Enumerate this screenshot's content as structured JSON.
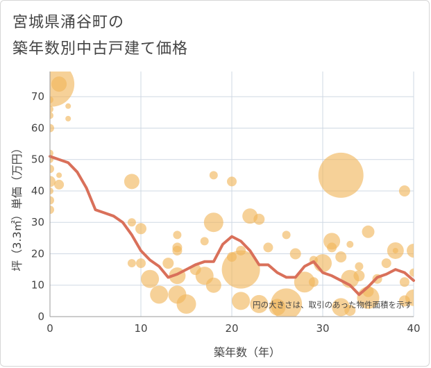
{
  "chart_data": {
    "type": "scatter",
    "title_line1": "宮城県涌谷町の",
    "title_line2": "築年数別中古戸建て価格",
    "xlabel": "築年数（年）",
    "ylabel": "坪（3.3㎡）単価（万円）",
    "xlim": [
      0,
      40
    ],
    "ylim": [
      0,
      78
    ],
    "x_ticks": [
      0,
      10,
      20,
      30,
      40
    ],
    "y_ticks": [
      0,
      10,
      20,
      30,
      40,
      50,
      60,
      70
    ],
    "note": "円の大きさは、取引のあった物件面積を示す",
    "colors": {
      "bubble": "#f0b559",
      "line": "#d9705a",
      "grid": "#cfd8e3"
    },
    "bubbles": [
      {
        "x": 0.2,
        "y": 74,
        "s": 6.5
      },
      {
        "x": 1,
        "y": 74,
        "s": 2.2
      },
      {
        "x": 0,
        "y": 69,
        "s": 1
      },
      {
        "x": 2,
        "y": 67,
        "s": 0.8
      },
      {
        "x": 0,
        "y": 66,
        "s": 1
      },
      {
        "x": 0,
        "y": 64,
        "s": 1
      },
      {
        "x": 2,
        "y": 63,
        "s": 0.8
      },
      {
        "x": 0,
        "y": 60,
        "s": 1.2
      },
      {
        "x": 0,
        "y": 52,
        "s": 1
      },
      {
        "x": 0,
        "y": 50,
        "s": 1
      },
      {
        "x": 0,
        "y": 47,
        "s": 1.2
      },
      {
        "x": 1,
        "y": 45,
        "s": 0.8
      },
      {
        "x": 0,
        "y": 43,
        "s": 1.6
      },
      {
        "x": 1,
        "y": 42,
        "s": 1.4
      },
      {
        "x": 0,
        "y": 40,
        "s": 1
      },
      {
        "x": 0,
        "y": 37,
        "s": 1.2
      },
      {
        "x": 0,
        "y": 34,
        "s": 1.2
      },
      {
        "x": 9,
        "y": 43,
        "s": 2.2
      },
      {
        "x": 9,
        "y": 30,
        "s": 1.2
      },
      {
        "x": 10,
        "y": 28,
        "s": 1.6
      },
      {
        "x": 9,
        "y": 17,
        "s": 1.2
      },
      {
        "x": 10,
        "y": 17,
        "s": 1.4
      },
      {
        "x": 11,
        "y": 12,
        "s": 2.6
      },
      {
        "x": 12,
        "y": 7,
        "s": 2.6
      },
      {
        "x": 13,
        "y": 17,
        "s": 1.6
      },
      {
        "x": 14,
        "y": 26,
        "s": 1.2
      },
      {
        "x": 14,
        "y": 22,
        "s": 1.4
      },
      {
        "x": 14,
        "y": 21,
        "s": 1.4
      },
      {
        "x": 14,
        "y": 13,
        "s": 2.4
      },
      {
        "x": 14,
        "y": 7,
        "s": 2.6
      },
      {
        "x": 15,
        "y": 4,
        "s": 2.8
      },
      {
        "x": 16,
        "y": 15,
        "s": 1.6
      },
      {
        "x": 17,
        "y": 24,
        "s": 1.2
      },
      {
        "x": 17,
        "y": 13,
        "s": 2.6
      },
      {
        "x": 18,
        "y": 45,
        "s": 1.2
      },
      {
        "x": 18,
        "y": 30,
        "s": 2.8
      },
      {
        "x": 18,
        "y": 10,
        "s": 2.2
      },
      {
        "x": 20,
        "y": 43,
        "s": 1.4
      },
      {
        "x": 20,
        "y": 19,
        "s": 1.4
      },
      {
        "x": 21,
        "y": 21,
        "s": 1.4
      },
      {
        "x": 21,
        "y": 15,
        "s": 5.5
      },
      {
        "x": 21,
        "y": 5,
        "s": 2.6
      },
      {
        "x": 22,
        "y": 32,
        "s": 2.2
      },
      {
        "x": 23,
        "y": 31,
        "s": 1.6
      },
      {
        "x": 23,
        "y": 4,
        "s": 2.6
      },
      {
        "x": 24,
        "y": 22,
        "s": 1.4
      },
      {
        "x": 25,
        "y": 3,
        "s": 2.4
      },
      {
        "x": 26,
        "y": 26,
        "s": 1.2
      },
      {
        "x": 26,
        "y": 4,
        "s": 4.5
      },
      {
        "x": 27,
        "y": 20,
        "s": 1.6
      },
      {
        "x": 28,
        "y": 11,
        "s": 3
      },
      {
        "x": 29,
        "y": 18,
        "s": 1.2
      },
      {
        "x": 29,
        "y": 11,
        "s": 1.4
      },
      {
        "x": 30,
        "y": 17,
        "s": 2.6
      },
      {
        "x": 31,
        "y": 24,
        "s": 2.4
      },
      {
        "x": 31,
        "y": 22,
        "s": 1.4
      },
      {
        "x": 32,
        "y": 45,
        "s": 6.5
      },
      {
        "x": 32,
        "y": 19,
        "s": 1.6
      },
      {
        "x": 32,
        "y": 3,
        "s": 2.6
      },
      {
        "x": 33,
        "y": 23,
        "s": 1
      },
      {
        "x": 33,
        "y": 12,
        "s": 2.6
      },
      {
        "x": 33,
        "y": 2,
        "s": 1.6
      },
      {
        "x": 34,
        "y": 16,
        "s": 1.2
      },
      {
        "x": 34,
        "y": 13,
        "s": 1.6
      },
      {
        "x": 35,
        "y": 27,
        "s": 1.8
      },
      {
        "x": 35,
        "y": 8,
        "s": 1.6
      },
      {
        "x": 35,
        "y": 6,
        "s": 3.2
      },
      {
        "x": 36,
        "y": 12,
        "s": 1.4
      },
      {
        "x": 37,
        "y": 17,
        "s": 1.4
      },
      {
        "x": 38,
        "y": 21,
        "s": 2.4
      },
      {
        "x": 38,
        "y": 21,
        "s": 0.8
      },
      {
        "x": 39,
        "y": 40,
        "s": 1.6
      },
      {
        "x": 39,
        "y": 11,
        "s": 1.4
      },
      {
        "x": 39,
        "y": 5,
        "s": 1.6
      },
      {
        "x": 40,
        "y": 21,
        "s": 2
      },
      {
        "x": 40,
        "y": 14,
        "s": 1.2
      },
      {
        "x": 40,
        "y": 6,
        "s": 2.4
      }
    ],
    "trend": {
      "x": [
        0,
        1,
        2,
        3,
        4,
        5,
        6,
        7,
        8,
        9,
        10,
        11,
        12,
        13,
        14,
        15,
        16,
        17,
        18,
        19,
        20,
        21,
        22,
        23,
        24,
        25,
        26,
        27,
        28,
        29,
        30,
        31,
        32,
        33,
        34,
        35,
        36,
        37,
        38,
        39,
        40
      ],
      "y": [
        51,
        50,
        49,
        46,
        41,
        34,
        33,
        32,
        30,
        26,
        21,
        18,
        16,
        12.5,
        13.5,
        15,
        16.5,
        17.5,
        17.5,
        23,
        25.5,
        24,
        21,
        16.5,
        16.5,
        14,
        12.5,
        12.5,
        16,
        17.5,
        14,
        13,
        11.5,
        10,
        7,
        9.5,
        12.5,
        13.5,
        15,
        14,
        11.5
      ]
    }
  }
}
